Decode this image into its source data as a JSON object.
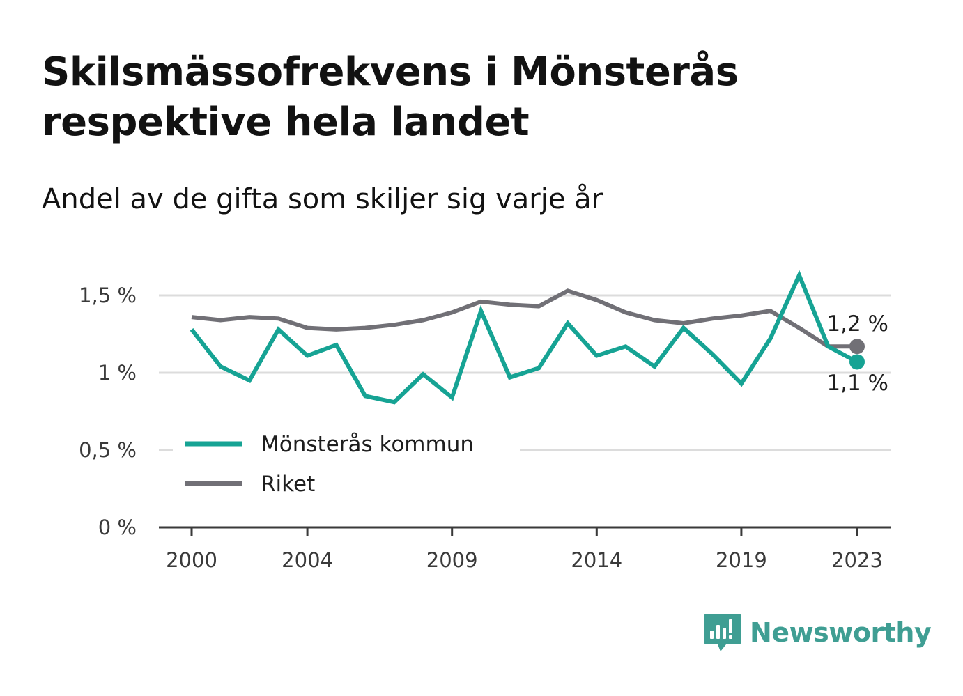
{
  "title": "Skilsmässofrekvens i Mönsterås respektive hela landet",
  "subtitle": "Andel av de gifta som skiljer sig varje år",
  "brand": {
    "name": "Newsworthy",
    "icon": "newsworthy-logo-icon",
    "color": "#3f9e93"
  },
  "chart_data": {
    "type": "line",
    "title": "Skilsmässofrekvens i Mönsterås respektive hela landet",
    "subtitle": "Andel av de gifta som skiljer sig varje år",
    "xlabel": "",
    "ylabel": "",
    "x": [
      2000,
      2001,
      2002,
      2003,
      2004,
      2005,
      2006,
      2007,
      2008,
      2009,
      2010,
      2011,
      2012,
      2013,
      2014,
      2015,
      2016,
      2017,
      2018,
      2019,
      2020,
      2021,
      2022,
      2023
    ],
    "x_ticks": [
      "2000",
      "2004",
      "2009",
      "2014",
      "2019",
      "2023"
    ],
    "y_ticks": [
      "0 %",
      "0,5 %",
      "1 %",
      "1,5 %"
    ],
    "ylim": [
      0,
      1.6
    ],
    "grid": true,
    "legend_position": "bottom-left",
    "series": [
      {
        "name": "Mönsterås kommun",
        "color": "#16a394",
        "values": [
          1.28,
          1.04,
          0.95,
          1.28,
          1.11,
          1.18,
          0.85,
          0.81,
          0.99,
          0.84,
          1.4,
          0.97,
          1.03,
          1.32,
          1.11,
          1.17,
          1.04,
          1.29,
          1.12,
          0.93,
          1.22,
          1.63,
          1.17,
          1.07
        ],
        "end_label": "1,1 %"
      },
      {
        "name": "Riket",
        "color": "#717076",
        "values": [
          1.36,
          1.34,
          1.36,
          1.35,
          1.29,
          1.28,
          1.29,
          1.31,
          1.34,
          1.39,
          1.46,
          1.44,
          1.43,
          1.53,
          1.47,
          1.39,
          1.34,
          1.32,
          1.35,
          1.37,
          1.4,
          1.29,
          1.17,
          1.17
        ],
        "end_label": "1,2 %"
      }
    ]
  }
}
